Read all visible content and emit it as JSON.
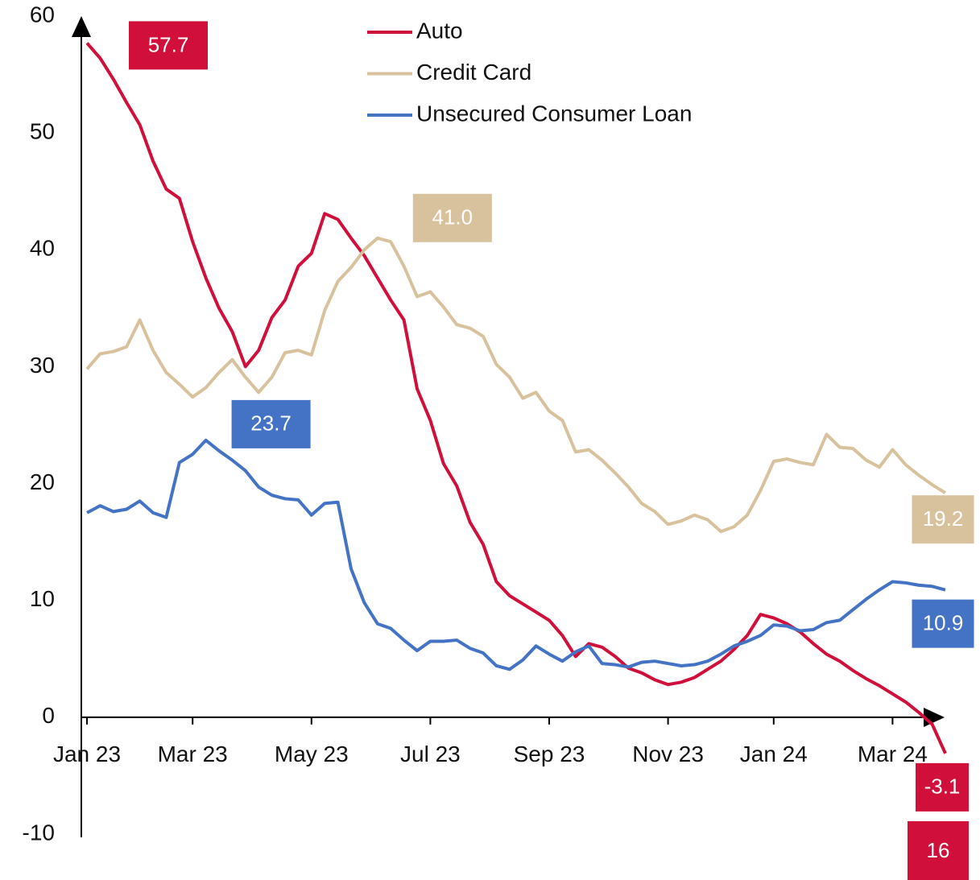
{
  "chart_data": {
    "type": "line",
    "categories": [
      "Jan 23",
      null,
      null,
      null,
      null,
      null,
      null,
      null,
      "Mar 23",
      null,
      null,
      null,
      null,
      null,
      null,
      null,
      null,
      "May 23",
      null,
      null,
      null,
      null,
      null,
      null,
      null,
      null,
      "Jul 23",
      null,
      null,
      null,
      null,
      null,
      null,
      null,
      null,
      "Sep 23",
      null,
      null,
      null,
      null,
      null,
      null,
      null,
      null,
      "Nov 23",
      null,
      null,
      null,
      null,
      null,
      null,
      null,
      "Jan 24",
      null,
      null,
      null,
      null,
      null,
      null,
      null,
      null,
      "Mar 24",
      null,
      null,
      null,
      null
    ],
    "series": [
      {
        "name": "Auto",
        "color": "#d0103a",
        "values": [
          57.7,
          56.4,
          54.6,
          52.6,
          50.7,
          47.6,
          45.2,
          44.4,
          40.7,
          37.6,
          35.0,
          33.0,
          30.0,
          31.4,
          34.2,
          35.7,
          38.6,
          39.7,
          43.1,
          42.6,
          41.0,
          39.5,
          37.6,
          35.7,
          34.0,
          28.1,
          25.4,
          21.7,
          19.8,
          16.7,
          14.8,
          11.6,
          10.4,
          9.7,
          9.0,
          8.3,
          7.0,
          5.2,
          6.3,
          6.0,
          5.2,
          4.2,
          3.8,
          3.2,
          2.8,
          3.0,
          3.4,
          4.1,
          4.8,
          5.8,
          7.0,
          8.8,
          8.5,
          8.0,
          7.3,
          6.3,
          5.4,
          4.8,
          4.0,
          3.3,
          2.7,
          2.0,
          1.3,
          0.4,
          -0.6,
          -3.1
        ],
        "value_labels": [
          "57.7",
          null,
          null,
          null,
          null,
          null,
          null,
          null,
          null,
          null,
          null,
          null,
          null,
          null,
          null,
          null,
          null,
          null,
          null,
          null,
          null,
          null,
          null,
          null,
          null,
          null,
          null,
          null,
          null,
          null,
          null,
          null,
          null,
          null,
          null,
          null,
          null,
          null,
          null,
          null,
          null,
          null,
          null,
          null,
          null,
          null,
          null,
          null,
          null,
          null,
          null,
          null,
          null,
          null,
          null,
          null,
          null,
          null,
          null,
          null,
          null,
          null,
          null,
          null,
          null,
          "-3.1"
        ]
      },
      {
        "name": "Credit Card",
        "color": "#d8c29d",
        "values": [
          29.8,
          31.1,
          31.3,
          31.7,
          34.0,
          31.4,
          29.5,
          28.5,
          27.4,
          28.2,
          29.5,
          30.6,
          29.1,
          27.8,
          29.1,
          31.2,
          31.4,
          31.0,
          34.8,
          37.3,
          38.5,
          40.0,
          41.0,
          40.7,
          38.6,
          36.0,
          36.4,
          35.1,
          33.6,
          33.3,
          32.6,
          30.2,
          29.1,
          27.3,
          27.8,
          26.2,
          25.4,
          22.7,
          22.9,
          22.0,
          20.9,
          19.7,
          18.3,
          17.6,
          16.5,
          16.8,
          17.3,
          16.9,
          15.9,
          16.3,
          17.3,
          19.4,
          21.9,
          22.1,
          21.8,
          21.6,
          24.2,
          23.1,
          23.0,
          22.0,
          21.4,
          22.9,
          21.6,
          20.7,
          19.9,
          19.2
        ],
        "value_labels": [
          null,
          null,
          null,
          null,
          null,
          null,
          null,
          null,
          null,
          null,
          null,
          null,
          null,
          null,
          null,
          null,
          null,
          null,
          null,
          null,
          null,
          null,
          "41.0",
          null,
          null,
          null,
          null,
          null,
          null,
          null,
          null,
          null,
          null,
          null,
          null,
          null,
          null,
          null,
          null,
          null,
          null,
          null,
          null,
          null,
          null,
          null,
          null,
          null,
          null,
          null,
          null,
          null,
          null,
          null,
          null,
          null,
          null,
          null,
          null,
          null,
          null,
          null,
          null,
          null,
          null,
          "19.2"
        ]
      },
      {
        "name": "Unsecured Consumer Loan",
        "color": "#4472c4",
        "values": [
          17.5,
          18.1,
          17.6,
          17.8,
          18.5,
          17.5,
          17.1,
          21.8,
          22.5,
          23.7,
          22.8,
          22.0,
          21.1,
          19.7,
          19.0,
          18.7,
          18.6,
          17.3,
          18.3,
          18.4,
          12.7,
          9.8,
          8.0,
          7.6,
          6.6,
          5.7,
          6.5,
          6.5,
          6.6,
          5.9,
          5.5,
          4.4,
          4.1,
          4.9,
          6.1,
          5.4,
          4.8,
          5.6,
          6.1,
          4.6,
          4.5,
          4.3,
          4.7,
          4.8,
          4.6,
          4.4,
          4.5,
          4.8,
          5.4,
          6.1,
          6.5,
          7.0,
          7.9,
          7.8,
          7.4,
          7.5,
          8.1,
          8.3,
          9.2,
          10.1,
          10.9,
          11.6,
          11.5,
          11.3,
          11.2,
          10.9
        ],
        "value_labels": [
          null,
          null,
          null,
          null,
          null,
          null,
          null,
          null,
          null,
          "23.7",
          null,
          null,
          null,
          null,
          null,
          null,
          null,
          null,
          null,
          null,
          null,
          null,
          null,
          null,
          null,
          null,
          null,
          null,
          null,
          null,
          null,
          null,
          null,
          null,
          null,
          null,
          null,
          null,
          null,
          null,
          null,
          null,
          null,
          null,
          null,
          null,
          null,
          null,
          null,
          null,
          null,
          null,
          null,
          null,
          null,
          null,
          null,
          null,
          null,
          null,
          null,
          null,
          null,
          null,
          null,
          "10.9"
        ]
      }
    ],
    "ylim": [
      -10,
      60
    ],
    "yticks": [
      -10,
      0,
      10,
      20,
      30,
      40,
      50,
      60
    ],
    "legend": "top",
    "annotation": "16"
  }
}
